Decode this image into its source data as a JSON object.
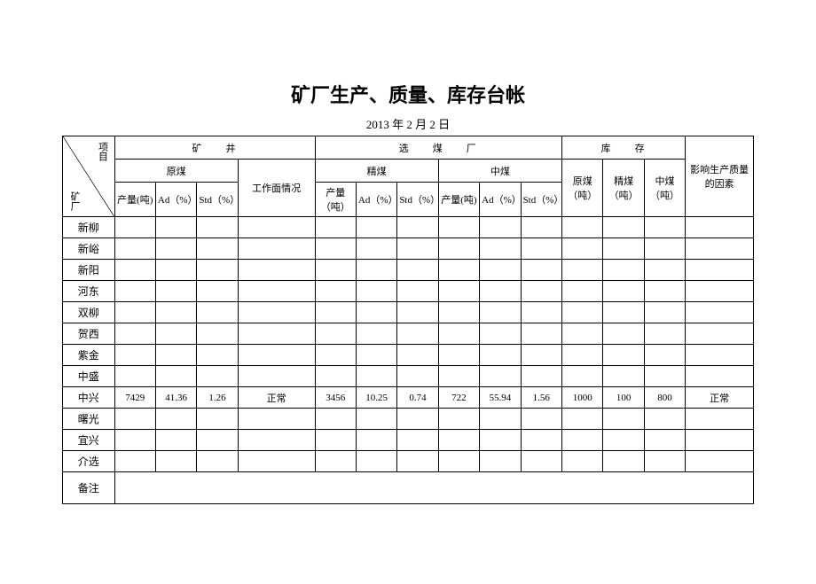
{
  "title": "矿厂生产、质量、库存台帐",
  "date": "2013 年 2 月 2 日",
  "corner": {
    "top": "项目",
    "bottom": "矿厂"
  },
  "header": {
    "group1": "矿　井",
    "group2": "选　煤　厂",
    "group3": "库　存",
    "sub_raw": "原煤",
    "sub_work": "工作面情况",
    "sub_clean": "精煤",
    "sub_mid": "中煤",
    "sub_stock_raw": "原煤（吨）",
    "sub_stock_clean": "精煤（吨）",
    "sub_stock_mid": "中煤（吨）",
    "factor": "影响生产质量的因素",
    "col_output_t": "产量(吨)",
    "col_output_t2": "产量（吨）",
    "col_output_t3": "产量(吨)",
    "col_ad": "Ad（%）",
    "col_std": "Std（%）"
  },
  "rows": [
    {
      "label": "新柳",
      "cells": [
        "",
        "",
        "",
        "",
        "",
        "",
        "",
        "",
        "",
        "",
        "",
        "",
        "",
        ""
      ]
    },
    {
      "label": "新峪",
      "cells": [
        "",
        "",
        "",
        "",
        "",
        "",
        "",
        "",
        "",
        "",
        "",
        "",
        "",
        ""
      ]
    },
    {
      "label": "新阳",
      "cells": [
        "",
        "",
        "",
        "",
        "",
        "",
        "",
        "",
        "",
        "",
        "",
        "",
        "",
        ""
      ]
    },
    {
      "label": "河东",
      "cells": [
        "",
        "",
        "",
        "",
        "",
        "",
        "",
        "",
        "",
        "",
        "",
        "",
        "",
        ""
      ]
    },
    {
      "label": "双柳",
      "cells": [
        "",
        "",
        "",
        "",
        "",
        "",
        "",
        "",
        "",
        "",
        "",
        "",
        "",
        ""
      ]
    },
    {
      "label": "贺西",
      "cells": [
        "",
        "",
        "",
        "",
        "",
        "",
        "",
        "",
        "",
        "",
        "",
        "",
        "",
        ""
      ]
    },
    {
      "label": "紫金",
      "cells": [
        "",
        "",
        "",
        "",
        "",
        "",
        "",
        "",
        "",
        "",
        "",
        "",
        "",
        ""
      ]
    },
    {
      "label": "中盛",
      "cells": [
        "",
        "",
        "",
        "",
        "",
        "",
        "",
        "",
        "",
        "",
        "",
        "",
        "",
        ""
      ]
    },
    {
      "label": "中兴",
      "cells": [
        "7429",
        "41.36",
        "1.26",
        "正常",
        "3456",
        "10.25",
        "0.74",
        "722",
        "55.94",
        "1.56",
        "1000",
        "100",
        "800",
        "正常"
      ]
    },
    {
      "label": "曙光",
      "cells": [
        "",
        "",
        "",
        "",
        "",
        "",
        "",
        "",
        "",
        "",
        "",
        "",
        "",
        ""
      ]
    },
    {
      "label": "宜兴",
      "cells": [
        "",
        "",
        "",
        "",
        "",
        "",
        "",
        "",
        "",
        "",
        "",
        "",
        "",
        ""
      ]
    },
    {
      "label": "介选",
      "cells": [
        "",
        "",
        "",
        "",
        "",
        "",
        "",
        "",
        "",
        "",
        "",
        "",
        "",
        ""
      ]
    }
  ],
  "notes_label": "备注",
  "notes_value": ""
}
